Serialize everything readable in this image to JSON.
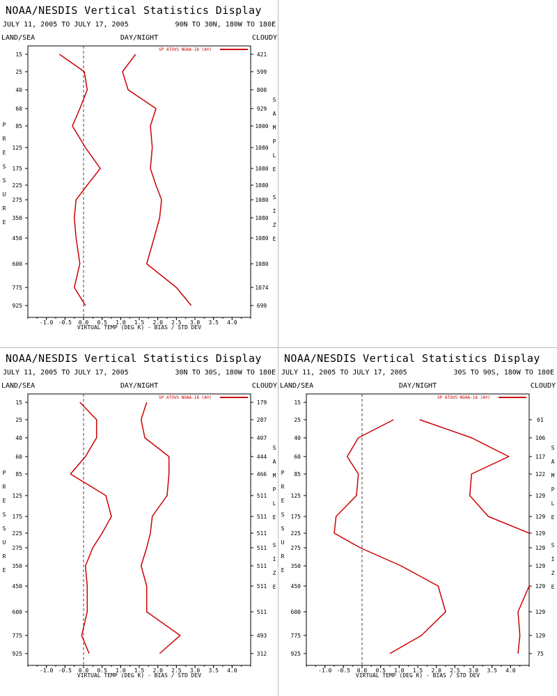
{
  "header": {
    "title": "NOAA/NESDIS Vertical Statistics Display",
    "dates": "JULY 11, 2005 TO JULY 17, 2005",
    "land_sea": "LAND/SEA",
    "day_night": "DAY/NIGHT",
    "cloudy": "CLOUDY",
    "xlabel": "VIRTUAL TEMP (DEG K) - BIAS / STD DEV",
    "ylabel_vertical": "PRESSURE",
    "right_label_vertical": "SAMPLE SIZE",
    "legend": "SP ATOVS NOAA-18 (A®)"
  },
  "colors": {
    "series": "#cc0000",
    "axis": "#000000",
    "zero_line": "#444444",
    "divider": "#bbbbbb"
  },
  "chart_data": [
    {
      "type": "line",
      "region": "90N TO 30N, 180W TO 180E",
      "xlim": [
        -1.5,
        4.5
      ],
      "x_ticks": [
        "-1.0",
        "-0.5",
        "0.0",
        "0.5",
        "1.0",
        "1.5",
        "2.0",
        "2.5",
        "3.0",
        "3.5",
        "4.0"
      ],
      "pressure_levels": [
        "15",
        "25",
        "40",
        "60",
        "85",
        "125",
        "175",
        "225",
        "275",
        "350",
        "450",
        "600",
        "775",
        "925"
      ],
      "sample_size": [
        "421",
        "599",
        "808",
        "929",
        "1000",
        "1080",
        "1080",
        "1080",
        "1080",
        "1080",
        "1080",
        "1080",
        "1074",
        "699"
      ],
      "series": [
        {
          "name": "bias",
          "values": [
            -0.65,
            0.02,
            0.1,
            -0.1,
            -0.3,
            0.05,
            0.45,
            0.1,
            -0.2,
            -0.25,
            -0.2,
            -0.1,
            -0.25,
            0.05
          ]
        },
        {
          "name": "std_dev",
          "values": [
            1.4,
            1.05,
            1.2,
            1.95,
            1.8,
            1.85,
            1.8,
            1.95,
            2.1,
            2.05,
            1.9,
            1.7,
            2.5,
            2.9
          ]
        }
      ]
    },
    {
      "type": "line",
      "region": "30N TO 30S, 180W TO 180E",
      "xlim": [
        -1.5,
        4.5
      ],
      "x_ticks": [
        "-1.0",
        "-0.5",
        "0.0",
        "0.5",
        "1.0",
        "1.5",
        "2.0",
        "2.5",
        "3.0",
        "3.5",
        "4.0"
      ],
      "pressure_levels": [
        "15",
        "25",
        "40",
        "60",
        "85",
        "125",
        "175",
        "225",
        "275",
        "350",
        "450",
        "600",
        "775",
        "925"
      ],
      "sample_size": [
        "179",
        "287",
        "407",
        "444",
        "466",
        "511",
        "511",
        "511",
        "511",
        "511",
        "511",
        "511",
        "493",
        "312"
      ],
      "series": [
        {
          "name": "bias",
          "values": [
            -0.1,
            0.35,
            0.35,
            0.05,
            -0.35,
            0.6,
            0.75,
            0.5,
            0.25,
            0.05,
            0.1,
            0.1,
            -0.05,
            0.15
          ]
        },
        {
          "name": "std_dev",
          "values": [
            1.7,
            1.55,
            1.65,
            2.3,
            2.3,
            2.25,
            1.85,
            1.8,
            1.7,
            1.55,
            1.7,
            1.7,
            2.6,
            2.05
          ]
        }
      ]
    },
    {
      "type": "line",
      "region": "30S TO 90S, 180W TO 180E",
      "xlim": [
        -1.5,
        4.5
      ],
      "x_ticks": [
        "-1.0",
        "-0.5",
        "0.0",
        "0.5",
        "1.0",
        "1.5",
        "2.0",
        "2.5",
        "3.0",
        "3.5",
        "4.0"
      ],
      "pressure_levels": [
        "15",
        "25",
        "40",
        "60",
        "85",
        "125",
        "175",
        "225",
        "275",
        "350",
        "450",
        "600",
        "775",
        "925"
      ],
      "sample_size": [
        "",
        "61",
        "106",
        "117",
        "122",
        "129",
        "129",
        "129",
        "129",
        "129",
        "129",
        "129",
        "129",
        "75"
      ],
      "series": [
        {
          "name": "bias",
          "values": [
            null,
            0.85,
            -0.1,
            -0.4,
            -0.1,
            -0.15,
            -0.7,
            -0.75,
            -0.05,
            1.05,
            2.05,
            2.25,
            1.6,
            0.75
          ]
        },
        {
          "name": "std_dev",
          "values": [
            null,
            1.55,
            2.95,
            3.95,
            2.95,
            2.9,
            3.4,
            4.5,
            4.8,
            4.8,
            4.5,
            4.2,
            4.25,
            4.2
          ]
        }
      ]
    }
  ]
}
